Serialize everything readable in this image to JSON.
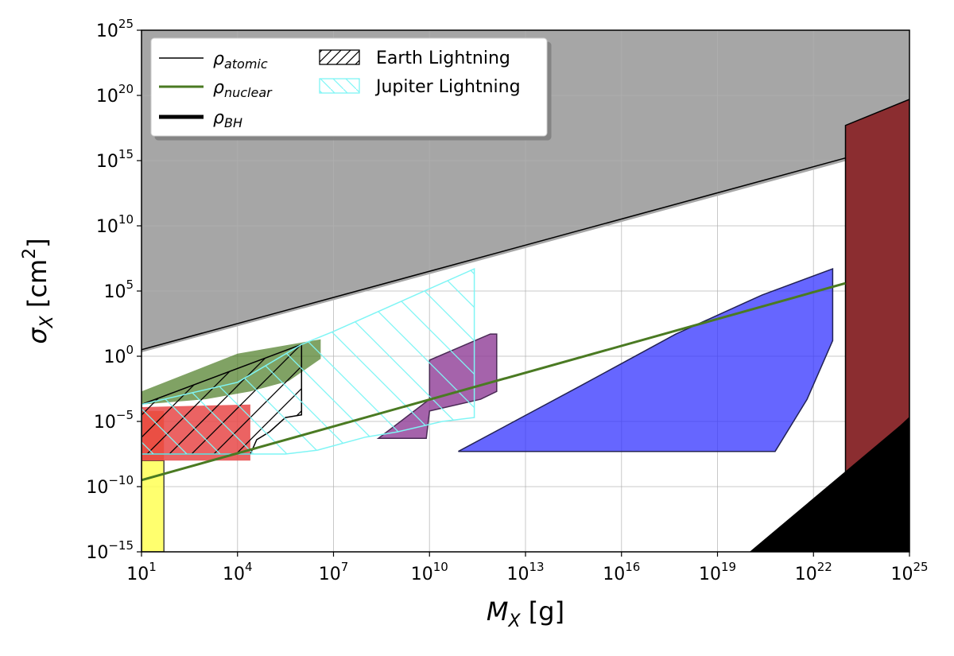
{
  "chart_data": {
    "type": "area",
    "x_scale": "log",
    "y_scale": "log",
    "xlim": [
      10,
      1e+25
    ],
    "ylim": [
      1e-15,
      1e+25
    ],
    "grid": true,
    "legend_position": "top-left",
    "xlabel": {
      "main": "M",
      "sub": "X",
      "rest": " [g]"
    },
    "ylabel": {
      "main": "σ",
      "sub": "X",
      "rest": " [cm",
      "sup": "2",
      "end": "]"
    },
    "x_ticks": [
      {
        "base": "10",
        "exp": "1",
        "value": 10
      },
      {
        "base": "10",
        "exp": "4",
        "value": 10000.0
      },
      {
        "base": "10",
        "exp": "7",
        "value": 10000000.0
      },
      {
        "base": "10",
        "exp": "10",
        "value": 10000000000.0
      },
      {
        "base": "10",
        "exp": "13",
        "value": 10000000000000.0
      },
      {
        "base": "10",
        "exp": "16",
        "value": 1e+16
      },
      {
        "base": "10",
        "exp": "19",
        "value": 1e+19
      },
      {
        "base": "10",
        "exp": "22",
        "value": 1e+22
      },
      {
        "base": "10",
        "exp": "25",
        "value": 1e+25
      }
    ],
    "y_ticks": [
      {
        "base": "10",
        "exp": "−15",
        "value": 1e-15
      },
      {
        "base": "10",
        "exp": "−10",
        "value": 1e-10
      },
      {
        "base": "10",
        "exp": "−5",
        "value": 1e-05
      },
      {
        "base": "10",
        "exp": "0",
        "value": 1
      },
      {
        "base": "10",
        "exp": "5",
        "value": 100000.0
      },
      {
        "base": "10",
        "exp": "10",
        "value": 10000000000.0
      },
      {
        "base": "10",
        "exp": "15",
        "value": 1000000000000000.0
      },
      {
        "base": "10",
        "exp": "20",
        "value": 1e+20
      },
      {
        "base": "10",
        "exp": "25",
        "value": 1e+25
      }
    ],
    "legend": [
      {
        "key": "rho_atomic",
        "symbol": "ρ",
        "sub": "atomic",
        "style": "line",
        "color": "#000000",
        "width": 1.5
      },
      {
        "key": "rho_nuclear",
        "symbol": "ρ",
        "sub": "nuclear",
        "style": "line",
        "color": "#4a7a22",
        "width": 3
      },
      {
        "key": "rho_bh",
        "symbol": "ρ",
        "sub": "BH",
        "style": "line",
        "color": "#000000",
        "width": 5
      },
      {
        "key": "earth_lightning",
        "label": "Earth Lightning",
        "style": "hatch",
        "color": "#000000"
      },
      {
        "key": "jupiter_lightning",
        "label": "Jupiter Lightning",
        "style": "hatch-back",
        "color": "#7ff5f5"
      }
    ],
    "regions": [
      {
        "name": "gray-excluded-region",
        "fill": "#a6a6a6",
        "stroke": "none",
        "opacity": 1,
        "points": [
          [
            1,
            0.3
          ],
          [
            1,
            25
          ],
          [
            25,
            25
          ],
          [
            25,
            16.3
          ]
        ]
      },
      {
        "name": "yellow-region",
        "fill": "#ffff55",
        "stroke": "#444444",
        "opacity": 0.85,
        "points": [
          [
            1,
            -15
          ],
          [
            1.7,
            -15
          ],
          [
            1.7,
            -8.0
          ],
          [
            1,
            -8.0
          ]
        ]
      },
      {
        "name": "orange-region",
        "fill": "#f26a1b",
        "stroke": "none",
        "opacity": 0.9,
        "points": [
          [
            1,
            -8.0
          ],
          [
            1.7,
            -8.0
          ],
          [
            1.7,
            -4.2
          ],
          [
            1,
            -4.2
          ]
        ]
      },
      {
        "name": "red-region",
        "fill": "#e84848",
        "stroke": "none",
        "opacity": 0.85,
        "points": [
          [
            1,
            -8.0
          ],
          [
            4.4,
            -8.0
          ],
          [
            4.4,
            -3.7
          ],
          [
            1,
            -3.9
          ]
        ]
      },
      {
        "name": "green-region",
        "fill": "#4a7a22",
        "stroke": "none",
        "opacity": 0.7,
        "points": [
          [
            1,
            -2.7
          ],
          [
            4.0,
            0.2
          ],
          [
            6.6,
            1.3
          ],
          [
            6.6,
            -0.2
          ],
          [
            5.6,
            -1.9
          ],
          [
            4.4,
            -2.7
          ],
          [
            3.0,
            -3.3
          ],
          [
            1,
            -3.7
          ]
        ]
      },
      {
        "name": "purple-region",
        "fill": "#8e3c96",
        "stroke": "#4a2a55",
        "opacity": 0.8,
        "points": [
          [
            8.4,
            -6.3
          ],
          [
            10.0,
            -3.3
          ],
          [
            10.0,
            -0.3
          ],
          [
            11.9,
            1.7
          ],
          [
            12.1,
            1.7
          ],
          [
            12.1,
            -2.7
          ],
          [
            11.6,
            -3.3
          ],
          [
            10.0,
            -4.2
          ],
          [
            9.9,
            -6.3
          ]
        ]
      },
      {
        "name": "blue-region",
        "fill": "#3333ff",
        "stroke": "#222255",
        "opacity": 0.75,
        "points": [
          [
            10.9,
            -7.3
          ],
          [
            14.7,
            -2.3
          ],
          [
            17.7,
            1.7
          ],
          [
            20.4,
            4.7
          ],
          [
            22.6,
            6.7
          ],
          [
            22.6,
            1.2
          ],
          [
            21.8,
            -3.3
          ],
          [
            20.8,
            -7.3
          ]
        ]
      },
      {
        "name": "maroon-region",
        "fill": "#8b2d30",
        "stroke": "#000000",
        "opacity": 1,
        "points": [
          [
            23.0,
            -9.3
          ],
          [
            23.0,
            17.7
          ],
          [
            25,
            19.7
          ],
          [
            25,
            -4.7
          ]
        ]
      },
      {
        "name": "black-bh-region",
        "fill": "#000000",
        "stroke": "none",
        "opacity": 1,
        "points": [
          [
            20.0,
            -15
          ],
          [
            25,
            -15
          ],
          [
            25,
            -4.7
          ]
        ]
      }
    ],
    "hatched_regions": [
      {
        "name": "earth-lightning-region",
        "color": "#000000",
        "direction": "forward",
        "points": [
          [
            1,
            -3.7
          ],
          [
            6.0,
            0.9
          ],
          [
            6.0,
            -4.5
          ],
          [
            5.5,
            -4.7
          ],
          [
            5.0,
            -5.8
          ],
          [
            4.6,
            -6.4
          ],
          [
            4.4,
            -7.5
          ],
          [
            1,
            -7.5
          ]
        ]
      },
      {
        "name": "jupiter-lightning-region",
        "color": "#7ff5f5",
        "direction": "back",
        "points": [
          [
            1,
            -3.7
          ],
          [
            4.0,
            -2.0
          ],
          [
            6.0,
            0.9
          ],
          [
            7.0,
            1.9
          ],
          [
            11.4,
            6.7
          ],
          [
            11.4,
            -4.7
          ],
          [
            10.4,
            -5.0
          ],
          [
            9.0,
            -5.8
          ],
          [
            8.0,
            -6.2
          ],
          [
            6.5,
            -7.2
          ],
          [
            5.5,
            -7.5
          ],
          [
            1,
            -7.5
          ]
        ]
      }
    ],
    "lines": [
      {
        "name": "rho-atomic-line",
        "color": "#000000",
        "width": 1.5,
        "points": [
          [
            1,
            0.5
          ],
          [
            23.0,
            15.2
          ]
        ]
      },
      {
        "name": "rho-nuclear-line",
        "color": "#4a7a22",
        "width": 3,
        "points": [
          [
            1,
            -9.5
          ],
          [
            23.0,
            5.6
          ]
        ]
      },
      {
        "name": "rho-bh-line",
        "color": "#000000",
        "width": 5,
        "points": []
      }
    ]
  }
}
